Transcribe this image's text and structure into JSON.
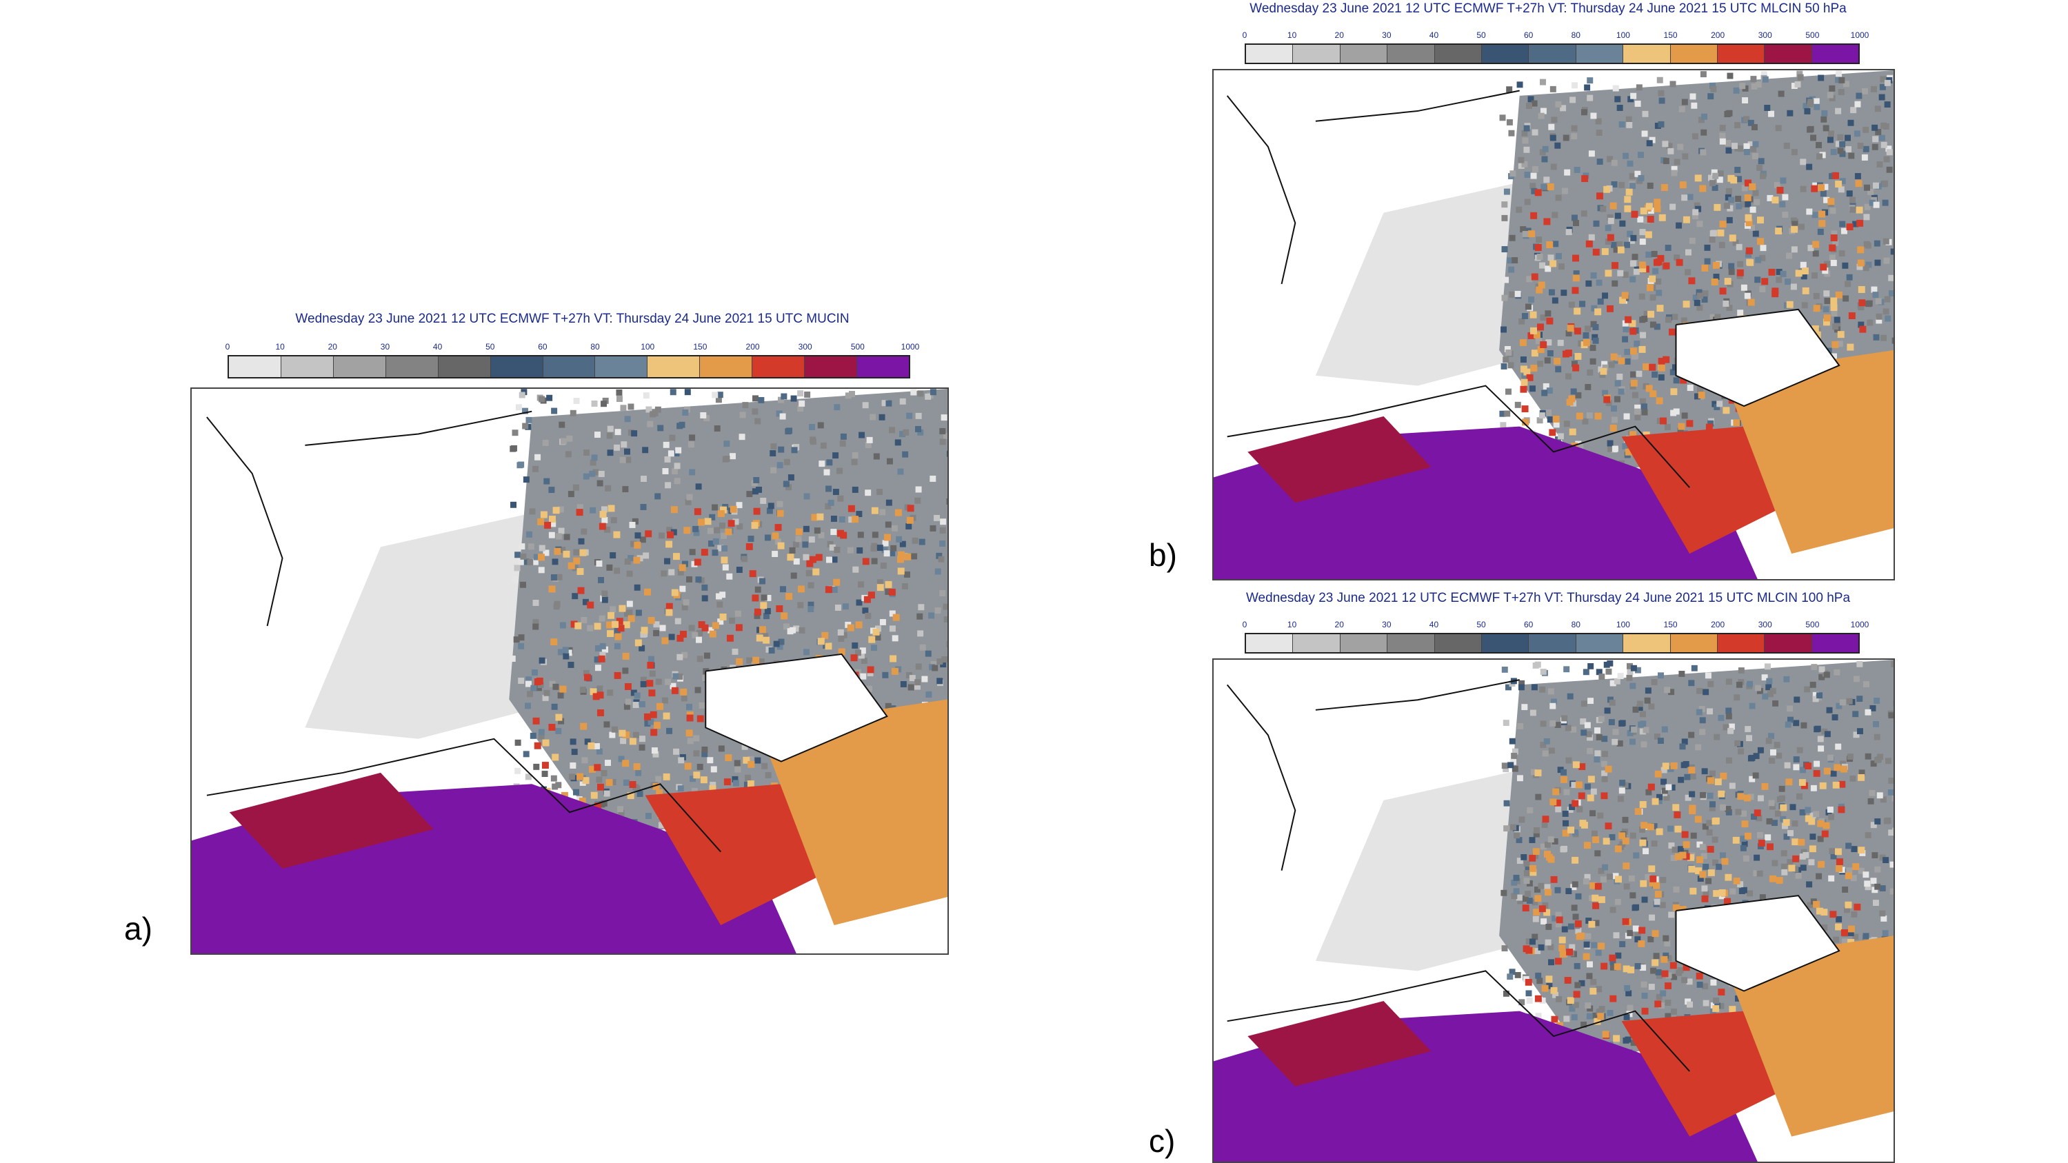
{
  "panels": [
    {
      "label": "a)",
      "title": "Wednesday 23 June 2021 12 UTC ECMWF T+27h VT: Thursday 24 June 2021 15 UTC MUCIN"
    },
    {
      "label": "b)",
      "title": "Wednesday 23 June 2021 12 UTC ECMWF T+27h VT: Thursday 24 June 2021 15 UTC MLCIN 50 hPa"
    },
    {
      "label": "c)",
      "title": "Wednesday 23 June 2021 12 UTC ECMWF T+27h VT: Thursday 24 June 2021 15 UTC MLCIN 100 hPa"
    }
  ],
  "legend": {
    "ticks": [
      "0",
      "10",
      "20",
      "30",
      "40",
      "50",
      "60",
      "80",
      "100",
      "150",
      "200",
      "300",
      "500",
      "1000"
    ],
    "colors": [
      "#e6e6e6",
      "#c4c4c4",
      "#a2a2a2",
      "#838383",
      "#676767",
      "#3a5573",
      "#4f6a85",
      "#6a8399",
      "#edc47a",
      "#e39b4a",
      "#d33a2a",
      "#9c1545",
      "#7a15a6"
    ]
  }
}
